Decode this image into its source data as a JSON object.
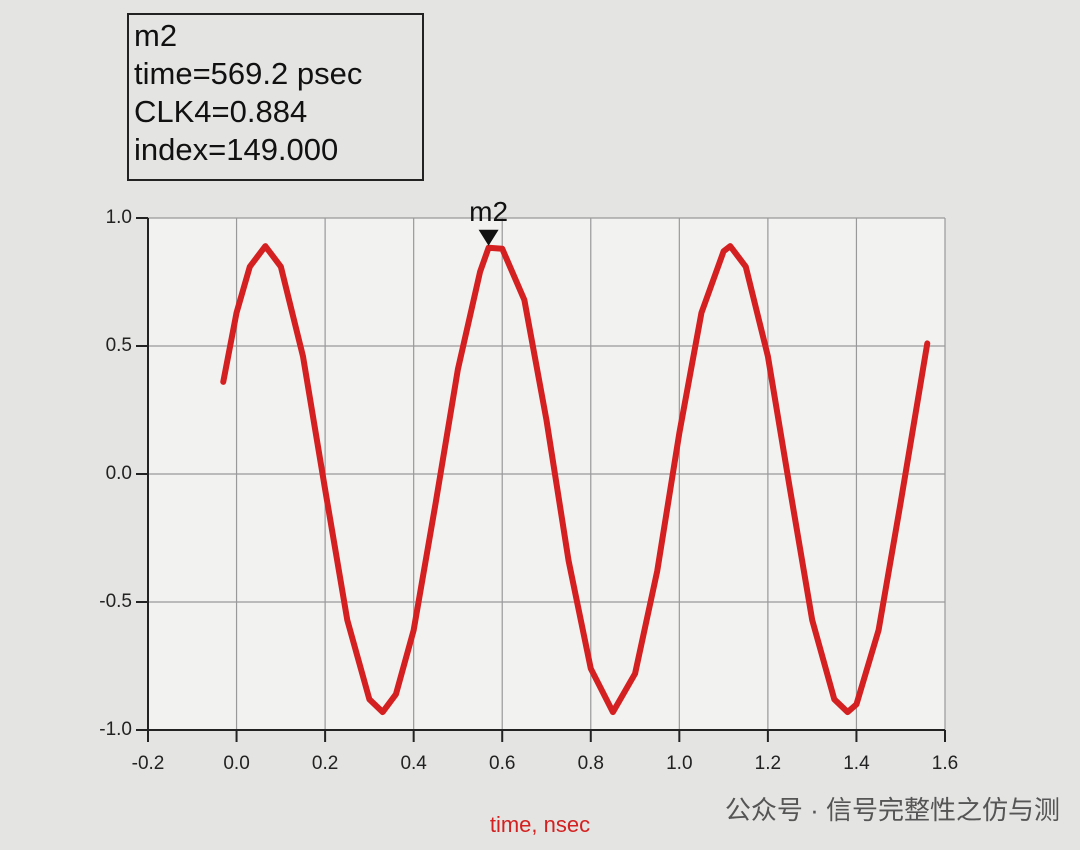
{
  "chart_data": {
    "type": "line",
    "xlabel": "time, nsec",
    "x": [
      -0.03,
      0,
      0.03,
      0.065,
      0.1,
      0.15,
      0.2,
      0.25,
      0.3,
      0.33,
      0.36,
      0.4,
      0.45,
      0.5,
      0.55,
      0.5692,
      0.6,
      0.65,
      0.7,
      0.75,
      0.8,
      0.85,
      0.9,
      0.95,
      1.0,
      1.05,
      1.1,
      1.115,
      1.15,
      1.2,
      1.25,
      1.3,
      1.35,
      1.38,
      1.4,
      1.45,
      1.5,
      1.56
    ],
    "values": [
      0.36,
      0.63,
      0.81,
      0.89,
      0.81,
      0.46,
      -0.06,
      -0.57,
      -0.88,
      -0.93,
      -0.86,
      -0.61,
      -0.11,
      0.41,
      0.79,
      0.884,
      0.88,
      0.68,
      0.21,
      -0.34,
      -0.76,
      -0.93,
      -0.78,
      -0.38,
      0.16,
      0.63,
      0.87,
      0.89,
      0.81,
      0.46,
      -0.06,
      -0.57,
      -0.88,
      -0.93,
      -0.9,
      -0.61,
      -0.11,
      0.51
    ],
    "color": "#d42020",
    "xlim": [
      -0.2,
      1.6
    ],
    "xticks": [
      -0.2,
      {
        "value": 0,
        "label": "0.0"
      },
      0.2,
      0.4,
      0.6,
      0.8,
      {
        "value": 1,
        "label": "1.0"
      },
      1.2,
      1.4,
      1.6
    ],
    "ylim": [
      -1,
      1
    ],
    "yticks": [
      {
        "value": -1,
        "label": "-1.0"
      },
      -0.5,
      {
        "value": 0,
        "label": "0.0"
      },
      0.5,
      {
        "value": 1,
        "label": "1.0"
      }
    ],
    "grid": true,
    "marker": {
      "name": "m2",
      "x": 0.5692,
      "y": 0.884,
      "readout": [
        "m2",
        "time=569.2 psec",
        "CLK4=0.884",
        "index=149.000"
      ]
    },
    "watermark": "公众号 · 信号完整性之仿与测"
  }
}
